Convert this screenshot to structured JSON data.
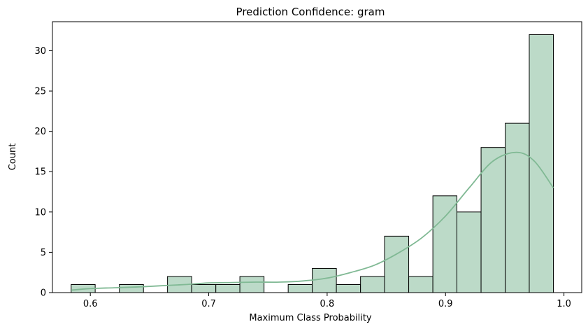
{
  "chart_data": {
    "type": "bar",
    "title": "Prediction Confidence: gram",
    "xlabel": "Maximum Class Probability",
    "ylabel": "Count",
    "xlim": [
      0.568,
      1.015
    ],
    "ylim": [
      0,
      33.6
    ],
    "xticks": [
      0.6,
      0.7,
      0.8,
      0.9,
      1.0
    ],
    "xtick_labels": [
      "0.6",
      "0.7",
      "0.8",
      "0.9",
      "1.0"
    ],
    "yticks": [
      0,
      5,
      10,
      15,
      20,
      25,
      30
    ],
    "ytick_labels": [
      "0",
      "5",
      "10",
      "15",
      "20",
      "25",
      "30"
    ],
    "grid": false,
    "bar_color": "#bcdac8",
    "edge_color": "#000000",
    "kde_color": "#80b994",
    "bins": [
      {
        "start": 0.5838,
        "end": 0.6041,
        "count": 1
      },
      {
        "start": 0.6041,
        "end": 0.6245,
        "count": 0
      },
      {
        "start": 0.6245,
        "end": 0.6449,
        "count": 1
      },
      {
        "start": 0.6449,
        "end": 0.6652,
        "count": 0
      },
      {
        "start": 0.6652,
        "end": 0.6856,
        "count": 2
      },
      {
        "start": 0.6856,
        "end": 0.706,
        "count": 1
      },
      {
        "start": 0.706,
        "end": 0.7263,
        "count": 1
      },
      {
        "start": 0.7263,
        "end": 0.7467,
        "count": 2
      },
      {
        "start": 0.7467,
        "end": 0.7671,
        "count": 0
      },
      {
        "start": 0.7671,
        "end": 0.7874,
        "count": 1
      },
      {
        "start": 0.7874,
        "end": 0.8078,
        "count": 3
      },
      {
        "start": 0.8078,
        "end": 0.8282,
        "count": 1
      },
      {
        "start": 0.8282,
        "end": 0.8485,
        "count": 2
      },
      {
        "start": 0.8485,
        "end": 0.8689,
        "count": 7
      },
      {
        "start": 0.8689,
        "end": 0.8893,
        "count": 2
      },
      {
        "start": 0.8893,
        "end": 0.9096,
        "count": 12
      },
      {
        "start": 0.9096,
        "end": 0.93,
        "count": 10
      },
      {
        "start": 0.93,
        "end": 0.9504,
        "count": 18
      },
      {
        "start": 0.9504,
        "end": 0.9707,
        "count": 21
      },
      {
        "start": 0.9707,
        "end": 0.9911,
        "count": 32
      }
    ],
    "kde": {
      "x": [
        0.584,
        0.6,
        0.62,
        0.64,
        0.66,
        0.68,
        0.7,
        0.72,
        0.74,
        0.76,
        0.78,
        0.8,
        0.82,
        0.84,
        0.86,
        0.88,
        0.9,
        0.92,
        0.94,
        0.96,
        0.975,
        0.991
      ],
      "y": [
        0.3,
        0.5,
        0.6,
        0.7,
        0.85,
        1.0,
        1.2,
        1.25,
        1.3,
        1.3,
        1.45,
        1.8,
        2.5,
        3.4,
        4.9,
        6.8,
        9.5,
        13.0,
        16.3,
        17.4,
        16.3,
        13.0
      ]
    }
  }
}
